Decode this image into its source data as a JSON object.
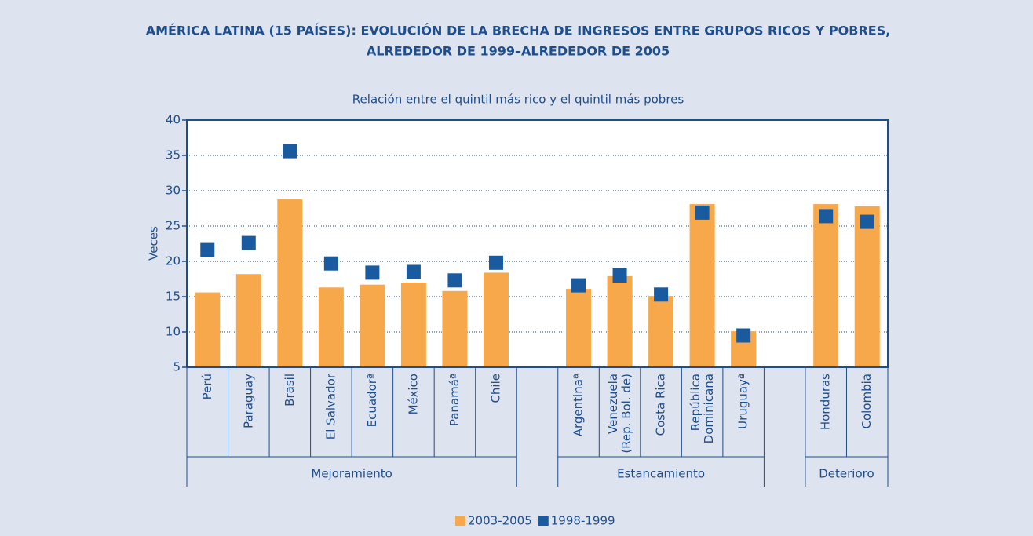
{
  "chart_data": {
    "type": "bar",
    "title": [
      "AMÉRICA LATINA (15 PAÍSES): EVOLUCIÓN DE LA BRECHA DE INGRESOS ENTRE GRUPOS RICOS Y POBRES,",
      "ALREDEDOR DE 1999–ALREDEDOR DE 2005"
    ],
    "subtitle": "Relación entre el quintil más rico y el quintil más pobres",
    "y_label": "Veces",
    "categories": [
      "Perú",
      "Paraguay",
      "Brasil",
      "El Salvador",
      "Ecuadorª",
      "México",
      "Panamáª",
      "Chile",
      null,
      "Argentinaª",
      "Venezuela\n(Rep. Bol. de)",
      "Costa Rica",
      "República\nDominicana",
      "Uruguayª",
      null,
      "Honduras",
      "Colombia"
    ],
    "groups": [
      "Mejoramiento",
      "Estancamiento",
      "Deterioro"
    ],
    "series": [
      {
        "name": "2003-2005",
        "color": "#f7a84a",
        "type": "bar",
        "values": [
          15.6,
          18.2,
          28.8,
          16.3,
          16.7,
          17.0,
          15.8,
          18.4,
          null,
          16.1,
          17.9,
          15.1,
          28.1,
          10.1,
          null,
          28.1,
          27.8
        ]
      },
      {
        "name": "1998-1999",
        "color": "#1a5a9e",
        "type": "marker",
        "values": [
          21.6,
          22.6,
          35.6,
          19.7,
          18.4,
          18.5,
          17.3,
          19.8,
          null,
          16.6,
          18.0,
          15.3,
          26.9,
          9.5,
          null,
          26.4,
          25.6
        ]
      }
    ],
    "ylim": [
      5,
      40
    ],
    "yticks": [
      5,
      10,
      15,
      20,
      25,
      30,
      35,
      40
    ],
    "grid": true
  }
}
